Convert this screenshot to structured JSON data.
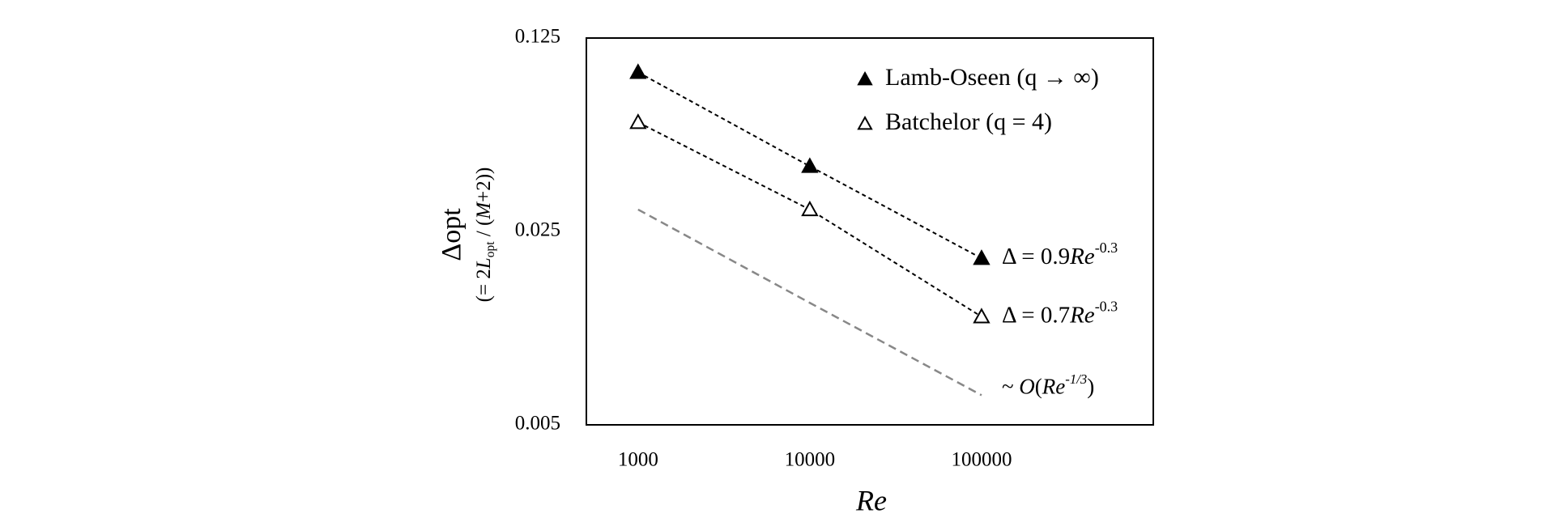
{
  "chart_data": {
    "type": "scatter",
    "x_label": "Re",
    "y_label": [
      "Δ",
      "opt"
    ],
    "y_label_note": [
      "(= 2",
      "L",
      "opt",
      " / (",
      "M",
      "+2))"
    ],
    "x_log": true,
    "y_log": true,
    "xlim": [
      500,
      1000000
    ],
    "xticks": [
      1000,
      10000,
      100000
    ],
    "ylim": [
      0.005,
      0.125
    ],
    "yticks": [
      0.005,
      0.025,
      0.125
    ],
    "legend": "upper right",
    "series": [
      {
        "name": "Lamb-Oseen (q → ∞)",
        "marker": "filled-triangle",
        "color": "#000000",
        "x": [
          1000,
          10000,
          100000
        ],
        "values": [
          0.094,
          0.043,
          0.02
        ],
        "fit_label": [
          "Δ = 0.9",
          "Re",
          "-0.3"
        ]
      },
      {
        "name": "Batchelor (q = 4)",
        "marker": "open-triangle",
        "color": "#000000",
        "x": [
          1000,
          10000,
          100000
        ],
        "values": [
          0.062,
          0.03,
          0.0123
        ],
        "fit_label": [
          "Δ = 0.7",
          "Re",
          "-0.3"
        ]
      },
      {
        "marker": "none",
        "color": "#888888",
        "x": [
          1000,
          10000,
          100000
        ],
        "values": [
          0.03,
          0.0138,
          0.0064
        ],
        "fit_label": [
          "~ ",
          "O",
          "(",
          "Re",
          "-1/3",
          ")"
        ]
      }
    ]
  }
}
